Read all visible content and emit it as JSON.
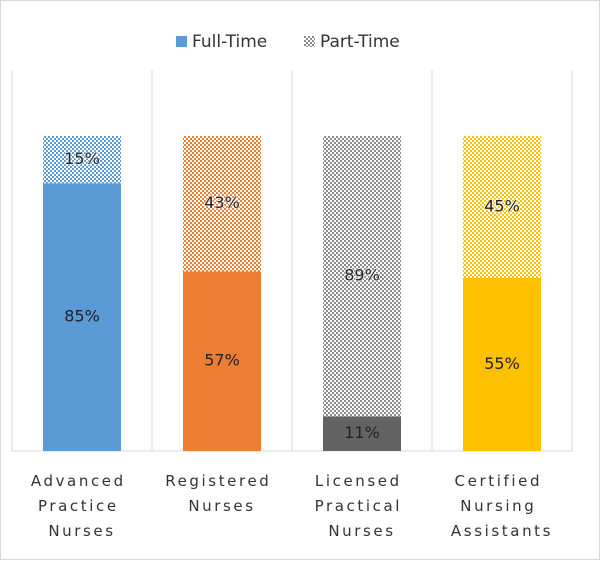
{
  "chart_data": {
    "type": "stacked_bar",
    "categories": [
      "Advanced Practice Nurses",
      "Registered Nurses",
      "Licensed Practical Nurses",
      "Certified Nursing Assistants"
    ],
    "series": [
      {
        "name": "Full-Time",
        "color": "#5b9bd5",
        "colors": [
          "#5b9bd5",
          "#ed7d31",
          "#636363",
          "#ffc000"
        ],
        "pattern": false,
        "values": [
          85,
          57,
          11,
          55
        ],
        "value_labels": [
          "85%",
          "57%",
          "11%",
          "55%"
        ]
      },
      {
        "name": "Part-Time",
        "color": "#8c8c8c",
        "colors": [
          "#5b9bd5",
          "#ed7d31",
          "#8c8c8c",
          "#ffc000"
        ],
        "pattern": true,
        "values": [
          15,
          43,
          89,
          45
        ],
        "value_labels": [
          "15%",
          "43%",
          "89%",
          "45%"
        ]
      }
    ],
    "ylim": [
      0,
      100
    ],
    "legend": "top"
  }
}
